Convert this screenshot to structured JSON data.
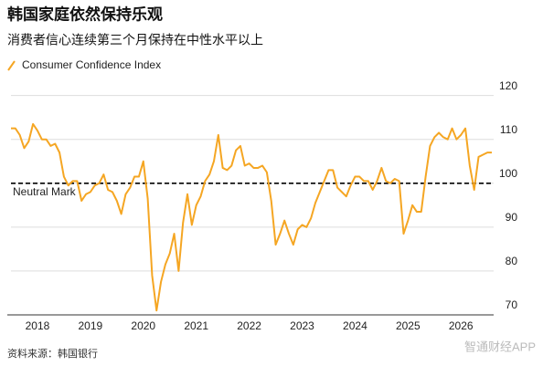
{
  "chart_data": {
    "type": "line",
    "title": "韩国家庭依然保持乐观",
    "subtitle": "消费者信心连续第三个月保持在中性水平以上",
    "source": "资料来源：韩国银行",
    "watermark": "智通财经APP",
    "categories": [
      null,
      null,
      null,
      null,
      null,
      null,
      "2018",
      null,
      null,
      null,
      null,
      null,
      null,
      null,
      null,
      null,
      null,
      null,
      "2019",
      null,
      null,
      null,
      null,
      null,
      null,
      null,
      null,
      null,
      null,
      null,
      "2020",
      null,
      null,
      null,
      null,
      null,
      null,
      null,
      null,
      null,
      null,
      null,
      "2021",
      null,
      null,
      null,
      null,
      null,
      null,
      null,
      null,
      null,
      null,
      null,
      "2022",
      null,
      null,
      null,
      null,
      null,
      null,
      null,
      null,
      null,
      null,
      null,
      "2023",
      null,
      null,
      null,
      null,
      null,
      null,
      null,
      null,
      null,
      null,
      null,
      "2024",
      null,
      null,
      null,
      null,
      null,
      null,
      null,
      null,
      null,
      null,
      null,
      "2025",
      null,
      null,
      null,
      null,
      null,
      null,
      null,
      null,
      null,
      null,
      null,
      "2026",
      null,
      null,
      null,
      null,
      null,
      null,
      null
    ],
    "series": [
      {
        "name": "Consumer Confidence Index",
        "color": "#f5a623",
        "values": [
          112.5,
          112.5,
          111,
          108,
          109.5,
          113.5,
          112,
          110,
          110,
          108.5,
          109,
          107,
          101.5,
          99.5,
          100.5,
          100.5,
          96,
          97.5,
          98,
          99.5,
          100,
          102,
          98.5,
          98,
          96,
          93,
          97.5,
          99,
          101.5,
          101.5,
          105,
          96.5,
          79,
          71,
          77.5,
          81.5,
          84,
          88.5,
          80,
          91,
          97.5,
          90.5,
          95,
          97,
          100.5,
          102,
          105,
          111,
          103.5,
          103,
          104,
          107.5,
          108.5,
          104,
          104.5,
          103.5,
          103.5,
          104,
          102.5,
          96,
          86,
          88.5,
          91.5,
          88.5,
          86,
          89.5,
          90.5,
          90,
          92,
          95.5,
          98,
          100.5,
          103,
          103,
          99,
          98,
          97,
          99.5,
          101.5,
          101.5,
          100.5,
          100.5,
          98.5,
          100.5,
          103.5,
          100.5,
          100,
          101,
          100.5,
          88.5,
          91.5,
          95,
          93.5,
          93.5,
          101.5,
          108.5,
          110.5,
          111.5,
          110.5,
          110,
          112.5,
          110,
          111,
          112.5,
          104,
          98.5,
          106,
          106.5,
          107,
          107
        ]
      }
    ],
    "ylim": [
      70,
      122
    ],
    "yticks": [
      70,
      80,
      90,
      100,
      110,
      120
    ],
    "grid": true,
    "reference_line": {
      "value": 100,
      "label": "Neutral Mark"
    },
    "legend": "top-left"
  }
}
